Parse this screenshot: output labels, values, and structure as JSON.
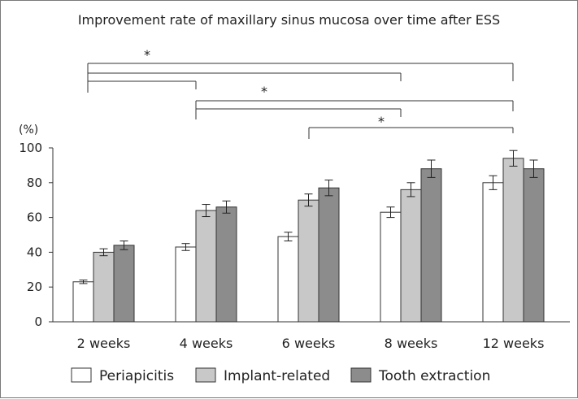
{
  "chart_data": {
    "type": "bar",
    "title": "Improvement rate of maxillary sinus mucosa over time after ESS",
    "ylabel": "(%)",
    "xlabel": "",
    "ylim": [
      0,
      100
    ],
    "yticks": [
      0,
      20,
      40,
      60,
      80,
      100
    ],
    "categories": [
      "2 weeks",
      "4 weeks",
      "6 weeks",
      "8 weeks",
      "12 weeks"
    ],
    "series": [
      {
        "name": "Periapicitis",
        "color": "#ffffff",
        "values": [
          23,
          43,
          49,
          63,
          80
        ],
        "errors": [
          1,
          2,
          2.5,
          3,
          4
        ]
      },
      {
        "name": "Implant-related",
        "color": "#c8c8c8",
        "values": [
          40,
          64,
          70,
          76,
          94
        ],
        "errors": [
          2,
          3.5,
          3.5,
          4,
          4.5
        ]
      },
      {
        "name": "Tooth extraction",
        "color": "#8c8c8c",
        "values": [
          44,
          66,
          77,
          88,
          88
        ],
        "errors": [
          2.5,
          3.5,
          4.5,
          5,
          5
        ]
      }
    ],
    "significance": [
      {
        "from_category": "2 weeks",
        "to_categories": [
          "12 weeks",
          "8 weeks",
          "4 weeks"
        ],
        "label": "*"
      },
      {
        "from_category": "4 weeks",
        "to_categories": [
          "12 weeks",
          "8 weeks"
        ],
        "label": "*"
      },
      {
        "from_category": "6 weeks",
        "to_categories": [
          "12 weeks"
        ],
        "label": "*"
      }
    ],
    "legend_position": "bottom",
    "grid": false
  }
}
